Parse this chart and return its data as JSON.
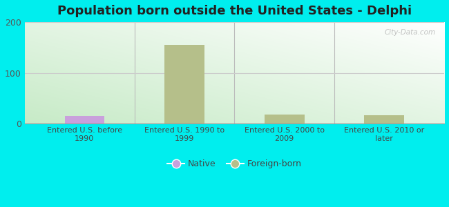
{
  "title": "Population born outside the United States - Delphi",
  "categories": [
    "Entered U.S. before\n1990",
    "Entered U.S. 1990 to\n1999",
    "Entered U.S. 2000 to\n2009",
    "Entered U.S. 2010 or\nlater"
  ],
  "native_values": [
    15,
    0,
    0,
    0
  ],
  "foreign_born_values": [
    0,
    155,
    18,
    17
  ],
  "native_color": "#c9a0dc",
  "foreign_born_color": "#b5bf8a",
  "background_color": "#00eeee",
  "ylim": [
    0,
    200
  ],
  "yticks": [
    0,
    100,
    200
  ],
  "title_fontsize": 13,
  "bar_width": 0.4,
  "grid_color": "#cccccc",
  "watermark": "City-Data.com",
  "plot_bg_left": "#c8e8c0",
  "plot_bg_right": "#f0f8f0"
}
